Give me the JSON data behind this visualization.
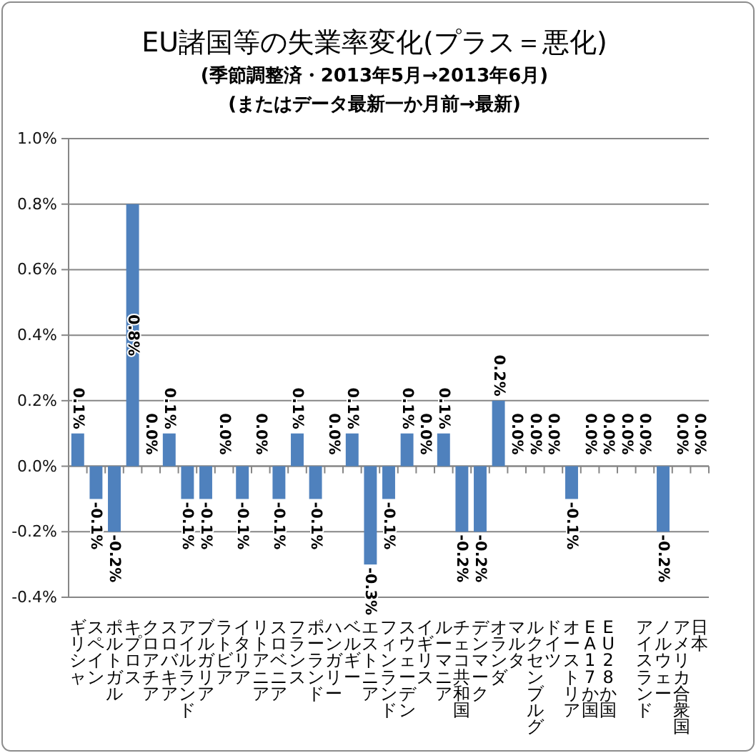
{
  "chart_data": {
    "type": "bar",
    "title": "EU諸国等の失業率変化(プラス＝悪化)",
    "subtitle": "(季節調整済・2013年5月→2013年6月)\n(またはデータ最新一か月前→最新)",
    "categories": [
      "ギリシャ",
      "スペイン",
      "ポルトガル",
      "キプロス",
      "クロアチア",
      "スロバキア",
      "アイルランド",
      "ブルガリア",
      "ラトビア",
      "イタリア",
      "リトアニア",
      "スロベニア",
      "フランス",
      "ポーランド",
      "ハンガリー",
      "ベルギー",
      "エストニア",
      "フィンランド",
      "スウェーデン",
      "イギリス",
      "ルーマニア",
      "チェコ共和国",
      "デンマーク",
      "オランダ",
      "マルタ",
      "ルクセンブルグ",
      "ドイツ",
      "オーストリア",
      "EA17か国",
      "EU28か国",
      null,
      "アイスランド",
      "ノルウェー",
      "アメリカ合衆国",
      "日本"
    ],
    "values": [
      0.1,
      -0.1,
      -0.2,
      0.8,
      0.0,
      0.1,
      -0.1,
      -0.1,
      0.0,
      -0.1,
      0.0,
      -0.1,
      0.1,
      -0.1,
      0.0,
      0.1,
      -0.3,
      -0.1,
      0.1,
      0.0,
      0.1,
      -0.2,
      -0.2,
      0.2,
      0.0,
      0.0,
      0.0,
      -0.1,
      0.0,
      0.0,
      0.0,
      0.0,
      -0.2,
      0.0,
      0.0
    ],
    "value_labels": [
      "0.1%",
      "-0.1%",
      "-0.2%",
      "0.8%",
      "0.0%",
      "0.1%",
      "-0.1%",
      "-0.1%",
      "0.0%",
      "-0.1%",
      "0.0%",
      "-0.1%",
      "0.1%",
      "-0.1%",
      "0.0%",
      "0.1%",
      "-0.3%",
      "-0.1%",
      "0.1%",
      "0.0%",
      "0.1%",
      "-0.2%",
      "-0.2%",
      "0.2%",
      "0.0%",
      "0.0%",
      "0.0%",
      "-0.1%",
      "0.0%",
      "0.0%",
      "0.0%",
      "0.0%",
      "-0.2%",
      "0.0%",
      "0.0%"
    ],
    "color": "#4f81bd",
    "ylim": [
      -0.4,
      1.0
    ],
    "yticks": [
      {
        "value": -0.4,
        "label": "-0.4%"
      },
      {
        "value": -0.2,
        "label": "-0.2%"
      },
      {
        "value": 0,
        "label": "0.0%"
      },
      {
        "value": 0.2,
        "label": "0.2%"
      },
      {
        "value": 0.4,
        "label": "0.4%"
      },
      {
        "value": 0.6,
        "label": "0.6%"
      },
      {
        "value": 0.8,
        "label": "0.8%"
      },
      {
        "value": 1.0,
        "label": "1.0%"
      }
    ],
    "grid": "y"
  }
}
